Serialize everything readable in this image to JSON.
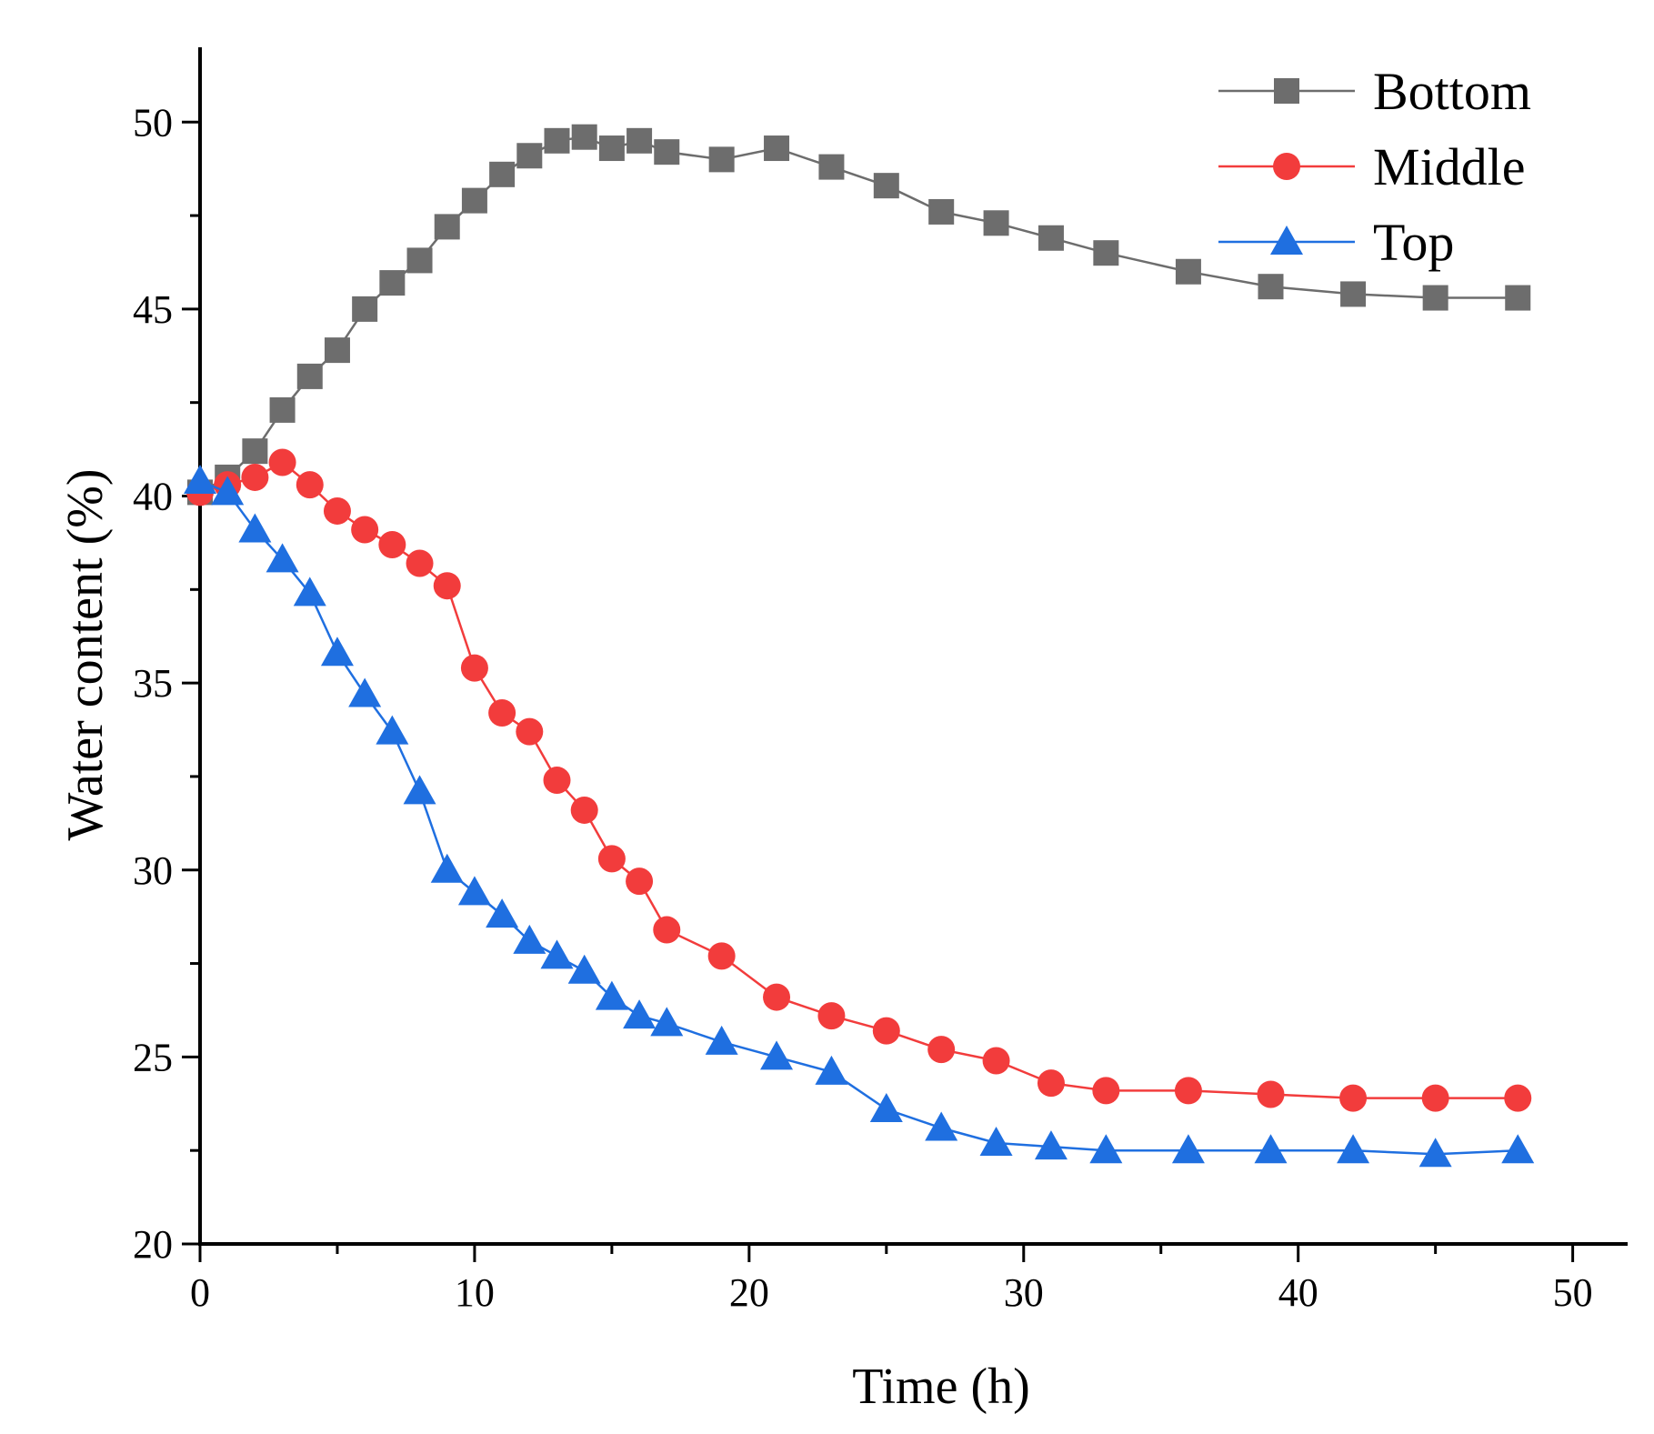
{
  "chart_data": {
    "type": "line",
    "title": "",
    "xlabel": "Time (h)",
    "ylabel": "Water content (%)",
    "xlim": [
      0,
      52
    ],
    "ylim": [
      20,
      52
    ],
    "xticks": [
      0,
      10,
      20,
      30,
      40,
      50
    ],
    "yticks": [
      20,
      25,
      30,
      35,
      40,
      45,
      50
    ],
    "grid": false,
    "legend_position": "top-right",
    "x": [
      0,
      1,
      2,
      3,
      4,
      5,
      6,
      7,
      8,
      9,
      10,
      11,
      12,
      13,
      14,
      15,
      16,
      17,
      19,
      21,
      23,
      25,
      27,
      29,
      31,
      33,
      36,
      39,
      42,
      45,
      48
    ],
    "series": [
      {
        "name": "Bottom",
        "color": "#6d6d6d",
        "marker": "square",
        "values": [
          40.1,
          40.5,
          41.2,
          42.3,
          43.2,
          43.9,
          45.0,
          45.7,
          46.3,
          47.2,
          47.9,
          48.6,
          49.1,
          49.5,
          49.6,
          49.3,
          49.5,
          49.2,
          49.0,
          49.3,
          48.8,
          48.3,
          47.6,
          47.3,
          46.9,
          46.5,
          46.0,
          45.6,
          45.4,
          45.3,
          45.3
        ]
      },
      {
        "name": "Middle",
        "color": "#f23c3c",
        "marker": "circle",
        "values": [
          40.1,
          40.3,
          40.5,
          40.9,
          40.3,
          39.6,
          39.1,
          38.7,
          38.2,
          37.6,
          35.4,
          34.2,
          33.7,
          32.4,
          31.6,
          30.3,
          29.7,
          28.4,
          27.7,
          26.6,
          26.1,
          25.7,
          25.2,
          24.9,
          24.3,
          24.1,
          24.1,
          24.0,
          23.9,
          23.9,
          23.9
        ]
      },
      {
        "name": "Top",
        "color": "#1f6fe0",
        "marker": "triangle",
        "values": [
          40.4,
          40.1,
          39.1,
          38.3,
          37.4,
          35.8,
          34.7,
          33.7,
          32.1,
          30.0,
          29.4,
          28.8,
          28.1,
          27.7,
          27.3,
          26.6,
          26.1,
          25.9,
          25.4,
          25.0,
          24.6,
          23.6,
          23.1,
          22.7,
          22.6,
          22.5,
          22.5,
          22.5,
          22.5,
          22.4,
          22.5
        ]
      }
    ]
  }
}
